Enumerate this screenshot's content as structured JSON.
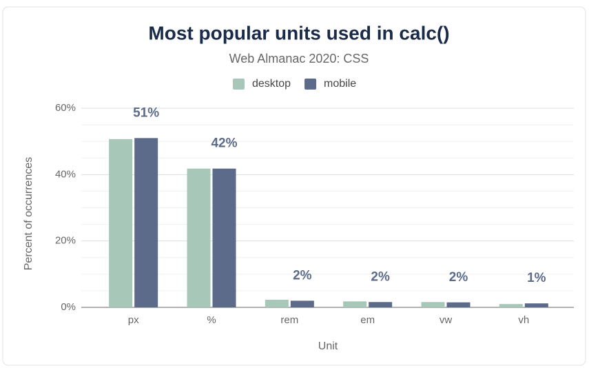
{
  "chart_data": {
    "type": "bar",
    "title": "Most popular units used in calc()",
    "subtitle": "Web Almanac 2020: CSS",
    "x_label": "Unit",
    "y_label": "Percent of occurrences",
    "categories": [
      "px",
      "%",
      "rem",
      "em",
      "vw",
      "vh"
    ],
    "series": [
      {
        "name": "desktop",
        "color": "#a7c8b9",
        "values": [
          50.7,
          41.8,
          2.3,
          1.8,
          1.6,
          1.0
        ]
      },
      {
        "name": "mobile",
        "color": "#5c6b89",
        "values": [
          51.0,
          41.8,
          2.0,
          1.6,
          1.5,
          1.2
        ],
        "value_labels": [
          "51%",
          "42%",
          "2%",
          "2%",
          "2%",
          "1%"
        ]
      }
    ],
    "ylim": [
      0,
      60
    ],
    "yticks": [
      {
        "value": 0,
        "label": "0%"
      },
      {
        "value": 20,
        "label": "20%"
      },
      {
        "value": 40,
        "label": "40%"
      },
      {
        "value": 60,
        "label": "60%"
      }
    ],
    "minor_yticks": [
      5,
      10,
      15,
      25,
      30,
      35,
      45,
      50,
      55
    ],
    "grid": true,
    "legend": "top"
  }
}
